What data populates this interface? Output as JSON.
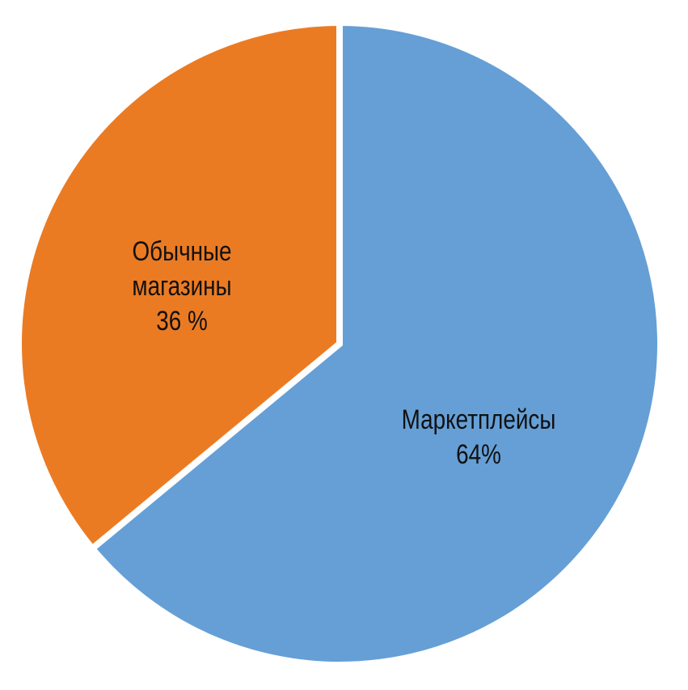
{
  "chart_data": {
    "type": "pie",
    "title": "",
    "start_angle": "12 o'clock",
    "direction": "clockwise",
    "slices": [
      {
        "label_lines": [
          "Маркетплейсы",
          "64%"
        ],
        "value": 64,
        "color": "#659fd6"
      },
      {
        "label_lines": [
          "Обычные",
          "магазины",
          "36  %"
        ],
        "value": 36,
        "color": "#eb7b23"
      }
    ]
  }
}
